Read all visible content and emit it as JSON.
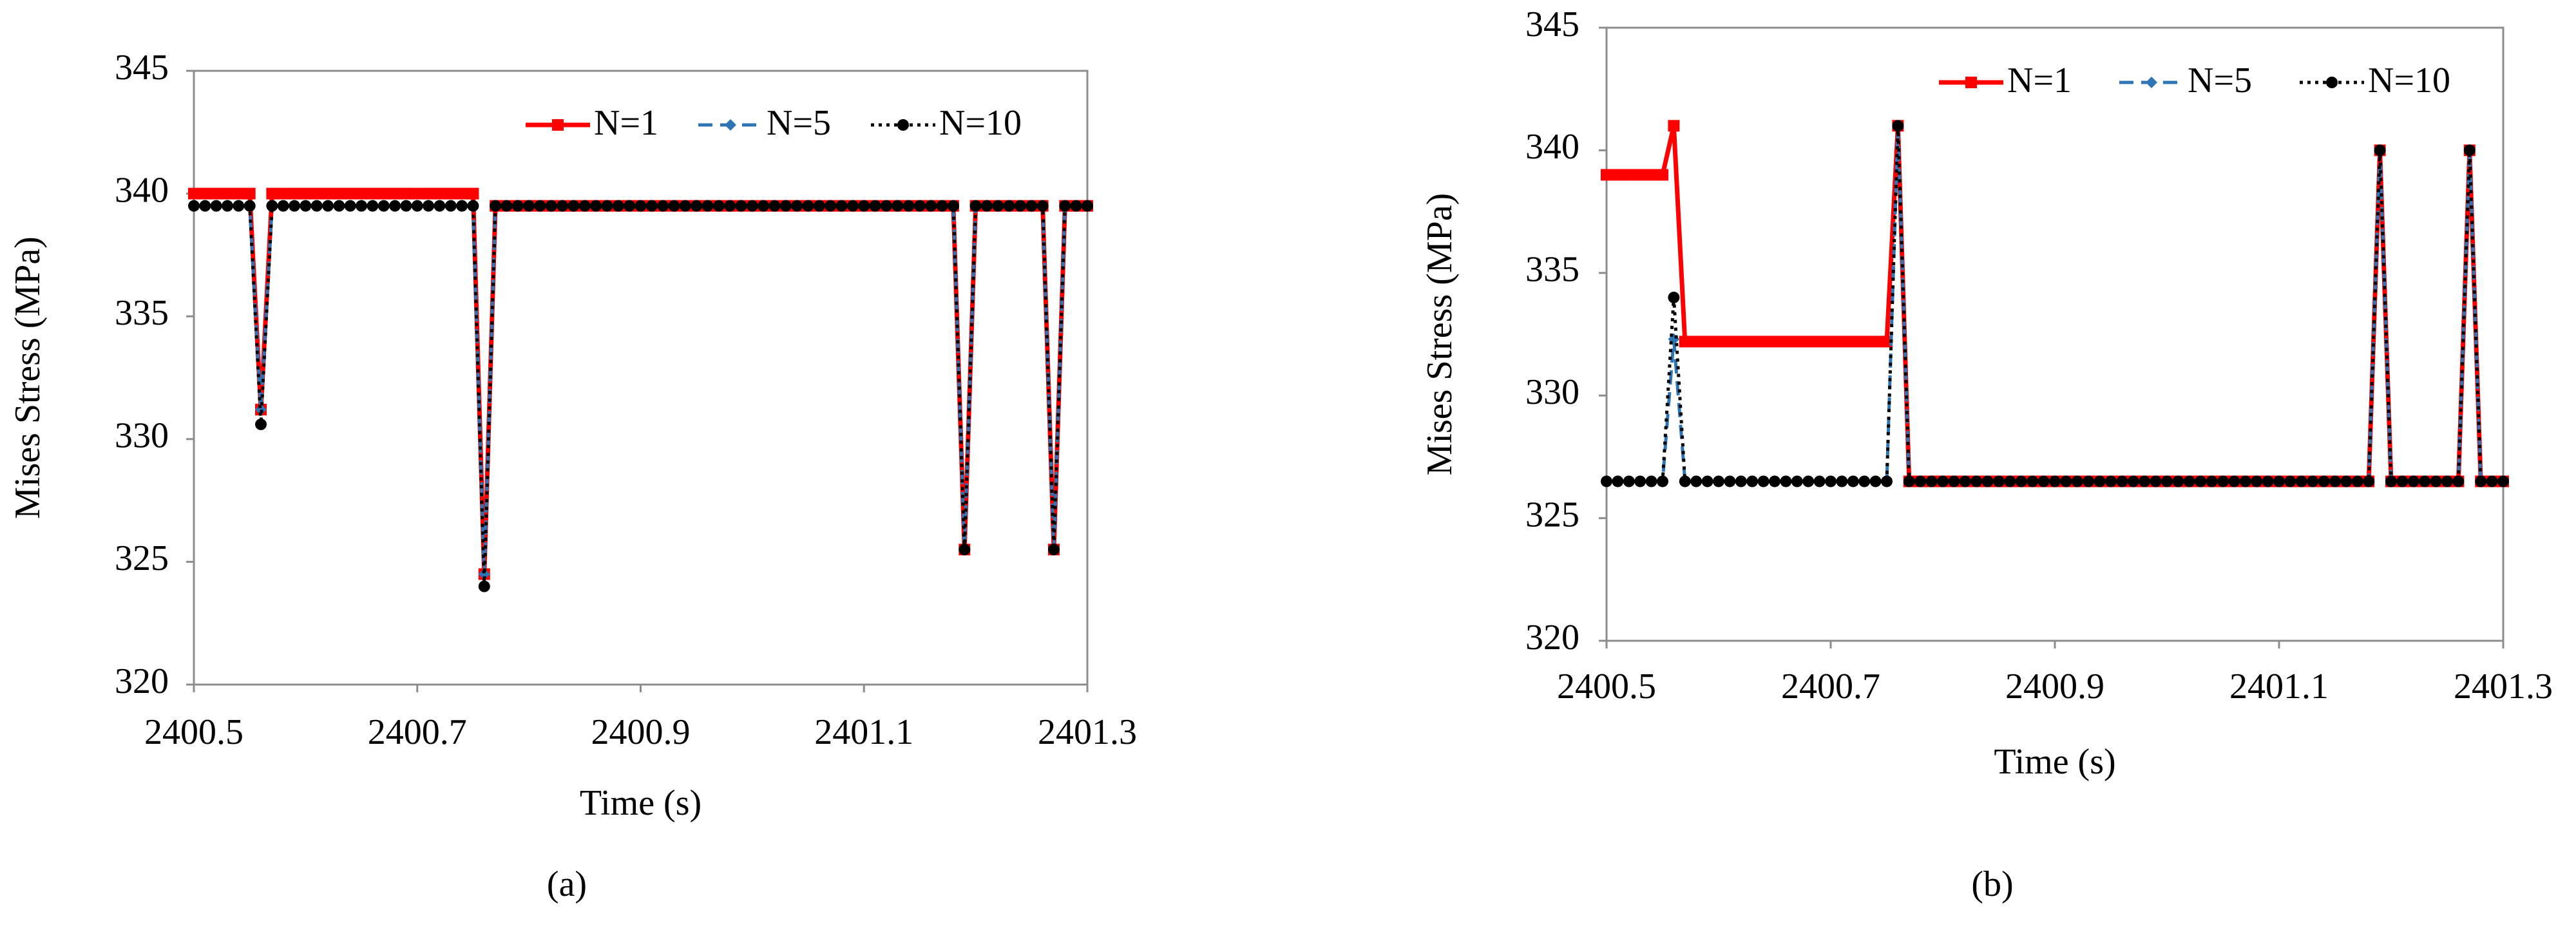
{
  "chart_data": [
    {
      "type": "line",
      "caption": "(a)",
      "xlabel": "Time (s)",
      "ylabel": "Mises Stress (MPa)",
      "legend": "upper right",
      "grid": false,
      "xlim": [
        2400.5,
        2401.3
      ],
      "xticks": [
        2400.5,
        2400.7,
        2400.9,
        2401.1,
        2401.3
      ],
      "ylim": [
        320,
        345
      ],
      "yticks": [
        320,
        325,
        330,
        335,
        340,
        345
      ],
      "x": [
        2400.5,
        2400.51,
        2400.52,
        2400.53,
        2400.54,
        2400.55,
        2400.56,
        2400.57,
        2400.58,
        2400.59,
        2400.6,
        2400.61,
        2400.62,
        2400.63,
        2400.64,
        2400.65,
        2400.66,
        2400.67,
        2400.68,
        2400.69,
        2400.7,
        2400.71,
        2400.72,
        2400.73,
        2400.74,
        2400.75,
        2400.76,
        2400.77,
        2400.78,
        2400.79,
        2400.8,
        2400.81,
        2400.82,
        2400.83,
        2400.84,
        2400.85,
        2400.86,
        2400.87,
        2400.88,
        2400.89,
        2400.9,
        2400.91,
        2400.92,
        2400.93,
        2400.94,
        2400.95,
        2400.96,
        2400.97,
        2400.98,
        2400.99,
        2401,
        2401.01,
        2401.02,
        2401.03,
        2401.04,
        2401.05,
        2401.06,
        2401.07,
        2401.08,
        2401.09,
        2401.1,
        2401.11,
        2401.12,
        2401.13,
        2401.14,
        2401.15,
        2401.16,
        2401.17,
        2401.18,
        2401.19,
        2401.2,
        2401.21,
        2401.22,
        2401.23,
        2401.24,
        2401.25,
        2401.26,
        2401.27,
        2401.28,
        2401.29,
        2401.3
      ],
      "series": [
        {
          "name": "N=1",
          "color": "#ff0000",
          "dash": "solid",
          "marker": "square",
          "values": [
            340,
            340,
            340,
            340,
            340,
            340,
            331.2,
            340,
            340,
            340,
            340,
            340,
            340,
            340,
            340,
            340,
            340,
            340,
            340,
            340,
            340,
            340,
            340,
            340,
            340,
            340,
            324.5,
            339.5,
            339.5,
            339.5,
            339.5,
            339.5,
            339.5,
            339.5,
            339.5,
            339.5,
            339.5,
            339.5,
            339.5,
            339.5,
            339.5,
            339.5,
            339.5,
            339.5,
            339.5,
            339.5,
            339.5,
            339.5,
            339.5,
            339.5,
            339.5,
            339.5,
            339.5,
            339.5,
            339.5,
            339.5,
            339.5,
            339.5,
            339.5,
            339.5,
            339.5,
            339.5,
            339.5,
            339.5,
            339.5,
            339.5,
            339.5,
            339.5,
            339.5,
            325.5,
            339.5,
            339.5,
            339.5,
            339.5,
            339.5,
            339.5,
            339.5,
            325.5,
            339.5,
            339.5,
            339.5
          ]
        },
        {
          "name": "N=5",
          "color": "#2e75b6",
          "dash": "dash",
          "marker": "diamond",
          "values": [
            339.5,
            339.5,
            339.5,
            339.5,
            339.5,
            339.5,
            331.2,
            339.5,
            339.5,
            339.5,
            339.5,
            339.5,
            339.5,
            339.5,
            339.5,
            339.5,
            339.5,
            339.5,
            339.5,
            339.5,
            339.5,
            339.5,
            339.5,
            339.5,
            339.5,
            339.5,
            324.5,
            339.5,
            339.5,
            339.5,
            339.5,
            339.5,
            339.5,
            339.5,
            339.5,
            339.5,
            339.5,
            339.5,
            339.5,
            339.5,
            339.5,
            339.5,
            339.5,
            339.5,
            339.5,
            339.5,
            339.5,
            339.5,
            339.5,
            339.5,
            339.5,
            339.5,
            339.5,
            339.5,
            339.5,
            339.5,
            339.5,
            339.5,
            339.5,
            339.5,
            339.5,
            339.5,
            339.5,
            339.5,
            339.5,
            339.5,
            339.5,
            339.5,
            339.5,
            325.5,
            339.5,
            339.5,
            339.5,
            339.5,
            339.5,
            339.5,
            339.5,
            325.5,
            339.5,
            339.5,
            339.5
          ]
        },
        {
          "name": "N=10",
          "color": "#000000",
          "dash": "dot",
          "marker": "circle",
          "values": [
            339.5,
            339.5,
            339.5,
            339.5,
            339.5,
            339.5,
            330.6,
            339.5,
            339.5,
            339.5,
            339.5,
            339.5,
            339.5,
            339.5,
            339.5,
            339.5,
            339.5,
            339.5,
            339.5,
            339.5,
            339.5,
            339.5,
            339.5,
            339.5,
            339.5,
            339.5,
            324,
            339.5,
            339.5,
            339.5,
            339.5,
            339.5,
            339.5,
            339.5,
            339.5,
            339.5,
            339.5,
            339.5,
            339.5,
            339.5,
            339.5,
            339.5,
            339.5,
            339.5,
            339.5,
            339.5,
            339.5,
            339.5,
            339.5,
            339.5,
            339.5,
            339.5,
            339.5,
            339.5,
            339.5,
            339.5,
            339.5,
            339.5,
            339.5,
            339.5,
            339.5,
            339.5,
            339.5,
            339.5,
            339.5,
            339.5,
            339.5,
            339.5,
            339.5,
            325.5,
            339.5,
            339.5,
            339.5,
            339.5,
            339.5,
            339.5,
            339.5,
            325.5,
            339.5,
            339.5,
            339.5
          ]
        }
      ]
    },
    {
      "type": "line",
      "caption": "(b)",
      "xlabel": "Time (s)",
      "ylabel": "Mises Stress (MPa)",
      "legend": "upper right",
      "grid": false,
      "xlim": [
        2400.5,
        2401.3
      ],
      "xticks": [
        2400.5,
        2400.7,
        2400.9,
        2401.1,
        2401.3
      ],
      "ylim": [
        320,
        345
      ],
      "yticks": [
        320,
        325,
        330,
        335,
        340,
        345
      ],
      "x": [
        2400.5,
        2400.51,
        2400.52,
        2400.53,
        2400.54,
        2400.55,
        2400.56,
        2400.57,
        2400.58,
        2400.59,
        2400.6,
        2400.61,
        2400.62,
        2400.63,
        2400.64,
        2400.65,
        2400.66,
        2400.67,
        2400.68,
        2400.69,
        2400.7,
        2400.71,
        2400.72,
        2400.73,
        2400.74,
        2400.75,
        2400.76,
        2400.77,
        2400.78,
        2400.79,
        2400.8,
        2400.81,
        2400.82,
        2400.83,
        2400.84,
        2400.85,
        2400.86,
        2400.87,
        2400.88,
        2400.89,
        2400.9,
        2400.91,
        2400.92,
        2400.93,
        2400.94,
        2400.95,
        2400.96,
        2400.97,
        2400.98,
        2400.99,
        2401,
        2401.01,
        2401.02,
        2401.03,
        2401.04,
        2401.05,
        2401.06,
        2401.07,
        2401.08,
        2401.09,
        2401.1,
        2401.11,
        2401.12,
        2401.13,
        2401.14,
        2401.15,
        2401.16,
        2401.17,
        2401.18,
        2401.19,
        2401.2,
        2401.21,
        2401.22,
        2401.23,
        2401.24,
        2401.25,
        2401.26,
        2401.27,
        2401.28,
        2401.29,
        2401.3
      ],
      "series": [
        {
          "name": "N=1",
          "color": "#ff0000",
          "dash": "solid",
          "marker": "square",
          "values": [
            339,
            339,
            339,
            339,
            339,
            339,
            341,
            332.2,
            332.2,
            332.2,
            332.2,
            332.2,
            332.2,
            332.2,
            332.2,
            332.2,
            332.2,
            332.2,
            332.2,
            332.2,
            332.2,
            332.2,
            332.2,
            332.2,
            332.2,
            332.2,
            341,
            326.5,
            326.5,
            326.5,
            326.5,
            326.5,
            326.5,
            326.5,
            326.5,
            326.5,
            326.5,
            326.5,
            326.5,
            326.5,
            326.5,
            326.5,
            326.5,
            326.5,
            326.5,
            326.5,
            326.5,
            326.5,
            326.5,
            326.5,
            326.5,
            326.5,
            326.5,
            326.5,
            326.5,
            326.5,
            326.5,
            326.5,
            326.5,
            326.5,
            326.5,
            326.5,
            326.5,
            326.5,
            326.5,
            326.5,
            326.5,
            326.5,
            326.5,
            340,
            326.5,
            326.5,
            326.5,
            326.5,
            326.5,
            326.5,
            326.5,
            340,
            326.5,
            326.5,
            326.5
          ]
        },
        {
          "name": "N=5",
          "color": "#2e75b6",
          "dash": "dash",
          "marker": "diamond",
          "values": [
            326.5,
            326.5,
            326.5,
            326.5,
            326.5,
            326.5,
            332.3,
            326.5,
            326.5,
            326.5,
            326.5,
            326.5,
            326.5,
            326.5,
            326.5,
            326.5,
            326.5,
            326.5,
            326.5,
            326.5,
            326.5,
            326.5,
            326.5,
            326.5,
            326.5,
            326.5,
            341,
            326.5,
            326.5,
            326.5,
            326.5,
            326.5,
            326.5,
            326.5,
            326.5,
            326.5,
            326.5,
            326.5,
            326.5,
            326.5,
            326.5,
            326.5,
            326.5,
            326.5,
            326.5,
            326.5,
            326.5,
            326.5,
            326.5,
            326.5,
            326.5,
            326.5,
            326.5,
            326.5,
            326.5,
            326.5,
            326.5,
            326.5,
            326.5,
            326.5,
            326.5,
            326.5,
            326.5,
            326.5,
            326.5,
            326.5,
            326.5,
            326.5,
            326.5,
            340,
            326.5,
            326.5,
            326.5,
            326.5,
            326.5,
            326.5,
            326.5,
            340,
            326.5,
            326.5,
            326.5
          ]
        },
        {
          "name": "N=10",
          "color": "#000000",
          "dash": "dot",
          "marker": "circle",
          "values": [
            326.5,
            326.5,
            326.5,
            326.5,
            326.5,
            326.5,
            334,
            326.5,
            326.5,
            326.5,
            326.5,
            326.5,
            326.5,
            326.5,
            326.5,
            326.5,
            326.5,
            326.5,
            326.5,
            326.5,
            326.5,
            326.5,
            326.5,
            326.5,
            326.5,
            326.5,
            341,
            326.5,
            326.5,
            326.5,
            326.5,
            326.5,
            326.5,
            326.5,
            326.5,
            326.5,
            326.5,
            326.5,
            326.5,
            326.5,
            326.5,
            326.5,
            326.5,
            326.5,
            326.5,
            326.5,
            326.5,
            326.5,
            326.5,
            326.5,
            326.5,
            326.5,
            326.5,
            326.5,
            326.5,
            326.5,
            326.5,
            326.5,
            326.5,
            326.5,
            326.5,
            326.5,
            326.5,
            326.5,
            326.5,
            326.5,
            326.5,
            326.5,
            326.5,
            340,
            326.5,
            326.5,
            326.5,
            326.5,
            326.5,
            326.5,
            326.5,
            340,
            326.5,
            326.5,
            326.5
          ]
        }
      ]
    }
  ]
}
